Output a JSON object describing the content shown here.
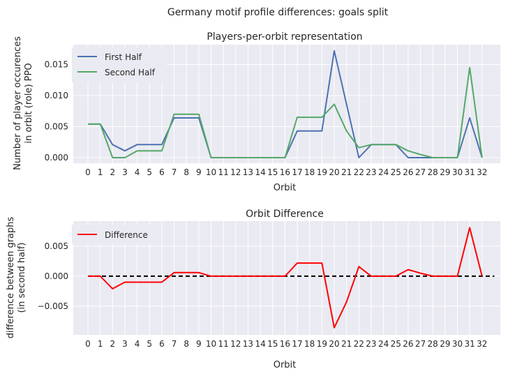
{
  "suptitle": "Germany motif profile differences: goals split",
  "chart_data": [
    {
      "type": "line",
      "title": "Players-per-orbit representation",
      "xlabel": "Orbit",
      "ylabel_line1": "Number of player occurences",
      "ylabel_line2": "in orbit (role) PPO",
      "categories": [
        "0",
        "1",
        "2",
        "3",
        "4",
        "5",
        "6",
        "7",
        "8",
        "9",
        "10",
        "11",
        "12",
        "13",
        "14",
        "15",
        "16",
        "17",
        "18",
        "19",
        "20",
        "21",
        "22",
        "23",
        "24",
        "25",
        "26",
        "27",
        "28",
        "29",
        "30",
        "31",
        "32"
      ],
      "yticks": [
        "0.000",
        "0.005",
        "0.010",
        "0.015"
      ],
      "ytick_values": [
        0,
        0.005,
        0.01,
        0.015
      ],
      "ylim": [
        -0.0009,
        0.0182
      ],
      "legend_position": "upper-left",
      "series": [
        {
          "name": "First Half",
          "color": "#4c72b0",
          "values": [
            0.0054,
            0.0054,
            0.0021,
            0.0011,
            0.0021,
            0.0021,
            0.0021,
            0.0064,
            0.0064,
            0.0064,
            0,
            0,
            0,
            0,
            0,
            0,
            0,
            0.0043,
            0.0043,
            0.0043,
            0.0172,
            0.0086,
            0,
            0.0021,
            0.0021,
            0.0021,
            0,
            0,
            0,
            0,
            0,
            0.0064,
            0
          ]
        },
        {
          "name": "Second Half",
          "color": "#55a868",
          "values": [
            0.0054,
            0.0054,
            0,
            0,
            0.0011,
            0.0011,
            0.0011,
            0.007,
            0.007,
            0.007,
            0,
            0,
            0,
            0,
            0,
            0,
            0,
            0.0065,
            0.0065,
            0.0065,
            0.0086,
            0.0043,
            0.0016,
            0.0021,
            0.0021,
            0.0021,
            0.0011,
            0.0005,
            0,
            0,
            0,
            0.0145,
            0
          ]
        }
      ]
    },
    {
      "type": "line",
      "title": "Orbit Difference",
      "xlabel": "Orbit",
      "ylabel_line1": "difference between graphs",
      "ylabel_line2": "(in second half)",
      "categories": [
        "0",
        "1",
        "2",
        "3",
        "4",
        "5",
        "6",
        "7",
        "8",
        "9",
        "10",
        "11",
        "12",
        "13",
        "14",
        "15",
        "16",
        "17",
        "18",
        "19",
        "20",
        "21",
        "22",
        "23",
        "24",
        "25",
        "26",
        "27",
        "28",
        "29",
        "30",
        "31",
        "32"
      ],
      "yticks": [
        "−0.005",
        "0.000",
        "0.005"
      ],
      "ytick_values": [
        -0.005,
        0,
        0.005
      ],
      "ylim": [
        -0.0098,
        0.0092
      ],
      "legend_position": "upper-left",
      "series": [
        {
          "name": "Difference",
          "color": "#ff0000",
          "values": [
            0,
            0,
            -0.0021,
            -0.001,
            -0.001,
            -0.001,
            -0.001,
            0.0006,
            0.0006,
            0.0006,
            0,
            0,
            0,
            0,
            0,
            0,
            0,
            0.0022,
            0.0022,
            0.0022,
            -0.0086,
            -0.0043,
            0.0016,
            0,
            0,
            0,
            0.0011,
            0.0005,
            0,
            0,
            0,
            0.0081,
            0
          ]
        }
      ],
      "reference_line": {
        "value": 0,
        "from": 0,
        "to": 33,
        "color": "#000000",
        "style": "dashed"
      }
    }
  ]
}
